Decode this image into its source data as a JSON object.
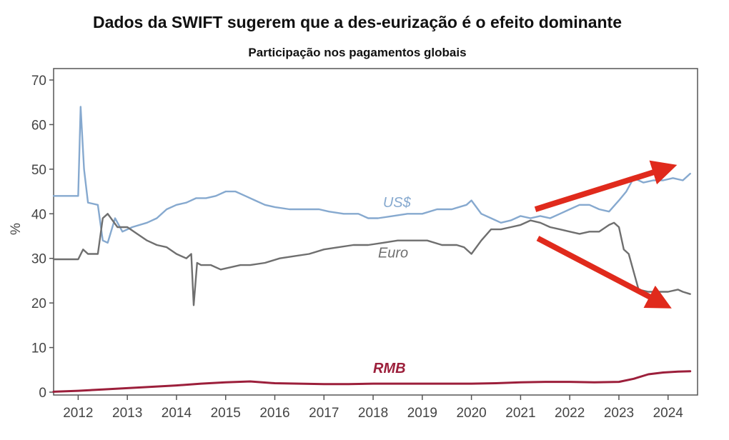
{
  "title": "Dados da SWIFT sugerem que a des-eurização é o efeito dominante",
  "subtitle": "Participação nos pagamentos globais",
  "colors": {
    "usd": "#86a9cf",
    "euro": "#6f6f6f",
    "rmb": "#9c1f3b",
    "arrow": "#e02a1c",
    "axis": "#555555"
  },
  "chart_data": {
    "type": "line",
    "ylabel": "%",
    "ylim": [
      0,
      70
    ],
    "yticks": [
      0,
      10,
      20,
      30,
      40,
      50,
      60,
      70
    ],
    "xlim": [
      2011.5,
      2024.6
    ],
    "xticks": [
      2012,
      2013,
      2014,
      2015,
      2016,
      2017,
      2018,
      2019,
      2020,
      2021,
      2022,
      2023,
      2024
    ],
    "grid": false,
    "series": [
      {
        "name": "US$",
        "key": "usd",
        "label_at": [
          2018.2,
          41.5
        ],
        "x": [
          2011.5,
          2011.9,
          2012.0,
          2012.05,
          2012.12,
          2012.2,
          2012.4,
          2012.5,
          2012.6,
          2012.75,
          2012.9,
          2013.1,
          2013.4,
          2013.6,
          2013.8,
          2014.0,
          2014.2,
          2014.4,
          2014.6,
          2014.8,
          2015.0,
          2015.2,
          2015.4,
          2015.6,
          2015.8,
          2016.0,
          2016.3,
          2016.6,
          2016.9,
          2017.1,
          2017.4,
          2017.7,
          2017.9,
          2018.1,
          2018.4,
          2018.7,
          2019.0,
          2019.3,
          2019.6,
          2019.9,
          2020.0,
          2020.2,
          2020.4,
          2020.6,
          2020.8,
          2021.0,
          2021.2,
          2021.4,
          2021.6,
          2021.8,
          2022.0,
          2022.2,
          2022.4,
          2022.6,
          2022.8,
          2023.0,
          2023.15,
          2023.3,
          2023.5,
          2023.7,
          2023.9,
          2024.1,
          2024.3,
          2024.45
        ],
        "y": [
          44,
          44,
          44,
          64,
          50,
          42.5,
          42,
          34,
          33.5,
          39,
          36,
          37,
          38,
          39,
          41,
          42,
          42.5,
          43.5,
          43.5,
          44,
          45,
          45,
          44,
          43,
          42,
          41.5,
          41,
          41,
          41,
          40.5,
          40,
          40,
          39,
          39,
          39.5,
          40,
          40,
          41,
          41,
          42,
          43,
          40,
          39,
          38,
          38.5,
          39.5,
          39,
          39.5,
          39,
          40,
          41,
          42,
          42,
          41,
          40.5,
          43,
          45,
          48,
          47,
          47.5,
          47.5,
          48,
          47.5,
          49
        ]
      },
      {
        "name": "Euro",
        "key": "euro",
        "label_at": [
          2018.1,
          30.2
        ],
        "x": [
          2011.5,
          2011.9,
          2012.0,
          2012.1,
          2012.2,
          2012.3,
          2012.4,
          2012.5,
          2012.6,
          2012.8,
          2013.0,
          2013.2,
          2013.4,
          2013.6,
          2013.8,
          2014.0,
          2014.2,
          2014.3,
          2014.35,
          2014.42,
          2014.5,
          2014.7,
          2014.9,
          2015.1,
          2015.3,
          2015.5,
          2015.8,
          2016.1,
          2016.4,
          2016.7,
          2017.0,
          2017.3,
          2017.6,
          2017.9,
          2018.2,
          2018.5,
          2018.8,
          2019.1,
          2019.4,
          2019.7,
          2019.85,
          2020.0,
          2020.2,
          2020.4,
          2020.6,
          2020.8,
          2021.0,
          2021.2,
          2021.4,
          2021.6,
          2021.8,
          2022.0,
          2022.2,
          2022.4,
          2022.6,
          2022.8,
          2022.9,
          2023.0,
          2023.1,
          2023.2,
          2023.4,
          2023.6,
          2023.8,
          2024.0,
          2024.2,
          2024.3,
          2024.45
        ],
        "y": [
          29.8,
          29.8,
          29.8,
          32,
          31,
          31,
          31,
          39,
          40,
          37,
          37,
          35.5,
          34,
          33,
          32.5,
          31,
          30,
          31,
          19.5,
          29,
          28.5,
          28.5,
          27.5,
          28,
          28.5,
          28.5,
          29,
          30,
          30.5,
          31,
          32,
          32.5,
          33,
          33,
          33.5,
          34,
          34,
          34,
          33,
          33,
          32.5,
          31,
          34,
          36.5,
          36.5,
          37,
          37.5,
          38.5,
          38,
          37,
          36.5,
          36,
          35.5,
          36,
          36,
          37.5,
          38,
          37,
          32,
          31,
          23,
          22.5,
          22.5,
          22.5,
          23,
          22.5,
          22
        ]
      },
      {
        "name": "RMB",
        "key": "rmb",
        "label_at": [
          2018.0,
          4.3
        ],
        "x": [
          2011.5,
          2012.0,
          2012.5,
          2013.0,
          2013.5,
          2014.0,
          2014.5,
          2015.0,
          2015.5,
          2016.0,
          2016.5,
          2017.0,
          2017.5,
          2018.0,
          2018.5,
          2019.0,
          2019.5,
          2020.0,
          2020.5,
          2021.0,
          2021.5,
          2022.0,
          2022.5,
          2023.0,
          2023.3,
          2023.6,
          2023.9,
          2024.2,
          2024.45
        ],
        "y": [
          0.1,
          0.3,
          0.6,
          0.9,
          1.2,
          1.5,
          1.9,
          2.2,
          2.4,
          2.0,
          1.9,
          1.8,
          1.8,
          1.9,
          1.9,
          1.9,
          1.9,
          1.9,
          2.0,
          2.2,
          2.3,
          2.3,
          2.2,
          2.3,
          3.0,
          4.0,
          4.4,
          4.6,
          4.7
        ]
      }
    ]
  }
}
